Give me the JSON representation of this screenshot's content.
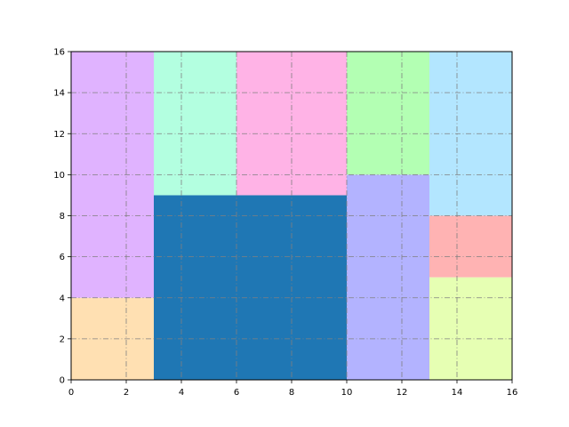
{
  "chart_data": {
    "type": "rectangles",
    "title": "",
    "xlabel": "",
    "ylabel": "",
    "xlim": [
      0,
      16
    ],
    "ylim": [
      0,
      16
    ],
    "xticks": [
      0,
      2,
      4,
      6,
      8,
      10,
      12,
      14,
      16
    ],
    "yticks": [
      0,
      2,
      4,
      6,
      8,
      10,
      12,
      14,
      16
    ],
    "grid": true,
    "grid_style": "dash-dot",
    "grid_color": "#808080",
    "rectangles": [
      {
        "x": 0,
        "y": 0,
        "w": 3,
        "h": 4,
        "color": "#ffe0b2"
      },
      {
        "x": 0,
        "y": 4,
        "w": 3,
        "h": 12,
        "color": "#e0b3ff"
      },
      {
        "x": 3,
        "y": 0,
        "w": 7,
        "h": 9,
        "color": "#1f77b4"
      },
      {
        "x": 3,
        "y": 9,
        "w": 3,
        "h": 7,
        "color": "#b3ffe0"
      },
      {
        "x": 6,
        "y": 9,
        "w": 4,
        "h": 7,
        "color": "#ffb3e6"
      },
      {
        "x": 10,
        "y": 0,
        "w": 3,
        "h": 10,
        "color": "#b3b3ff"
      },
      {
        "x": 10,
        "y": 10,
        "w": 3,
        "h": 6,
        "color": "#b3ffb3"
      },
      {
        "x": 13,
        "y": 0,
        "w": 3,
        "h": 5,
        "color": "#e6ffb3"
      },
      {
        "x": 13,
        "y": 5,
        "w": 3,
        "h": 3,
        "color": "#ffb3b3"
      },
      {
        "x": 13,
        "y": 8,
        "w": 3,
        "h": 8,
        "color": "#b3e6ff"
      }
    ]
  }
}
